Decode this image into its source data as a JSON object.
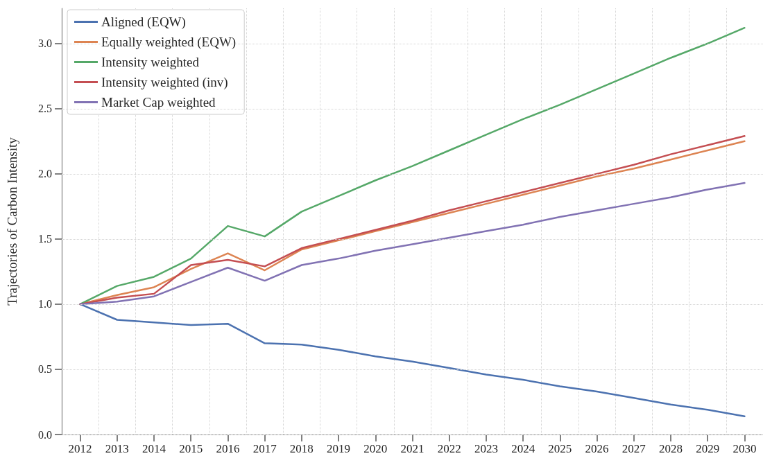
{
  "chart_data": {
    "type": "line",
    "ylabel": "Trajectories of Carbon Intensity",
    "categories": [
      "2012",
      "2013",
      "2014",
      "2015",
      "2016",
      "2017",
      "2018",
      "2019",
      "2020",
      "2021",
      "2022",
      "2023",
      "2024",
      "2025",
      "2026",
      "2027",
      "2028",
      "2029",
      "2030"
    ],
    "series": [
      {
        "name": "Aligned (EQW)",
        "color": "#4c72b0",
        "values": [
          1.0,
          0.88,
          0.86,
          0.84,
          0.85,
          0.7,
          0.69,
          0.65,
          0.6,
          0.56,
          0.51,
          0.46,
          0.42,
          0.37,
          0.33,
          0.28,
          0.23,
          0.19,
          0.14
        ]
      },
      {
        "name": "Equally weighted (EQW)",
        "color": "#dd8452",
        "values": [
          1.0,
          1.07,
          1.13,
          1.27,
          1.39,
          1.26,
          1.42,
          1.49,
          1.56,
          1.63,
          1.7,
          1.77,
          1.84,
          1.91,
          1.98,
          2.04,
          2.11,
          2.18,
          2.25
        ]
      },
      {
        "name": "Intensity weighted",
        "color": "#55a868",
        "values": [
          1.0,
          1.14,
          1.21,
          1.35,
          1.6,
          1.52,
          1.71,
          1.83,
          1.95,
          2.06,
          2.18,
          2.3,
          2.42,
          2.53,
          2.65,
          2.77,
          2.89,
          3.0,
          3.12
        ]
      },
      {
        "name": "Intensity weighted (inv)",
        "color": "#c44e52",
        "values": [
          1.0,
          1.05,
          1.08,
          1.3,
          1.34,
          1.29,
          1.43,
          1.5,
          1.57,
          1.64,
          1.72,
          1.79,
          1.86,
          1.93,
          2.0,
          2.07,
          2.15,
          2.22,
          2.29
        ]
      },
      {
        "name": "Market Cap weighted",
        "color": "#8172b3",
        "values": [
          1.0,
          1.02,
          1.06,
          1.17,
          1.28,
          1.18,
          1.3,
          1.35,
          1.41,
          1.46,
          1.51,
          1.56,
          1.61,
          1.67,
          1.72,
          1.77,
          1.82,
          1.88,
          1.93
        ]
      }
    ],
    "ylim": [
      0,
      3.27
    ],
    "yticks": [
      {
        "value": 0,
        "label": "0.0"
      },
      {
        "value": 0.5,
        "label": "0.5"
      },
      {
        "value": 1,
        "label": "1.0"
      },
      {
        "value": 1.5,
        "label": "1.5"
      },
      {
        "value": 2,
        "label": "2.0"
      },
      {
        "value": 2.5,
        "label": "2.5"
      },
      {
        "value": 3,
        "label": "3.0"
      }
    ],
    "grid": true,
    "legend": "top left",
    "marker": "none",
    "line_style": "solid"
  }
}
